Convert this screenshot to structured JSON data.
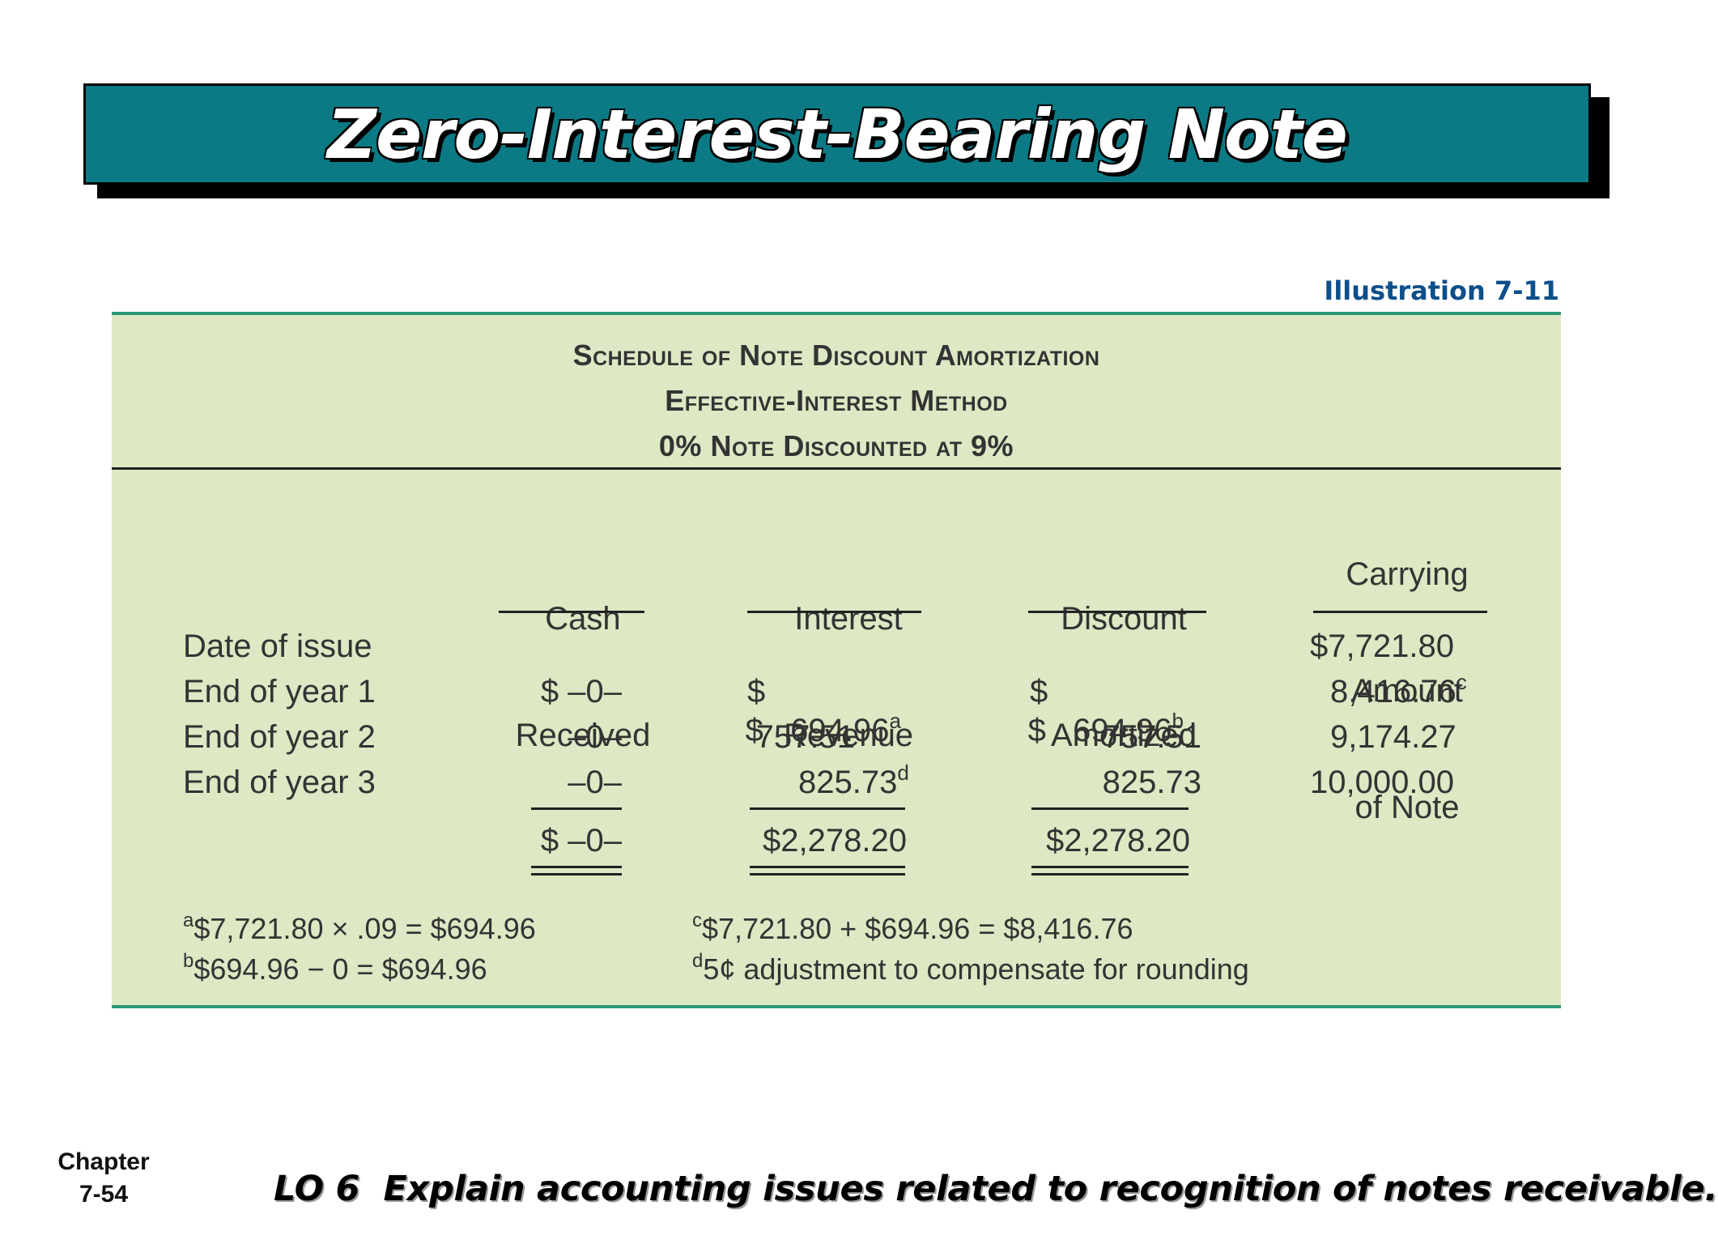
{
  "title": "Zero-Interest-Bearing Note",
  "illustration_label": "Illustration 7-11",
  "schedule": {
    "heading_lines": [
      "Schedule of Note Discount Amortization",
      "Effective-Interest Method",
      "0% Note Discounted at 9%"
    ],
    "columns": {
      "cash": [
        "Cash",
        "Received"
      ],
      "interest": [
        "Interest",
        "Revenue"
      ],
      "discount": [
        "Discount",
        "Amortized"
      ],
      "carrying": [
        "Carrying",
        "Amount",
        "of Note"
      ]
    },
    "rows": [
      {
        "label": "Date of issue",
        "cash": "",
        "interest": "",
        "interest_sup": "",
        "discount": "",
        "discount_sup": "",
        "carrying": "$7,721.80",
        "carrying_sup": ""
      },
      {
        "label": "End of year 1",
        "cash": "$ –0–",
        "interest": "$   694.96",
        "interest_sup": "a",
        "discount": "$   694.96",
        "discount_sup": "b",
        "carrying": "8,416.76",
        "carrying_sup": "c"
      },
      {
        "label": "End of year 2",
        "cash": "–0–",
        "interest": "757.51",
        "interest_sup": "",
        "discount": "757.51",
        "discount_sup": "",
        "carrying": "9,174.27",
        "carrying_sup": ""
      },
      {
        "label": "End of year 3",
        "cash": "–0–",
        "interest": "825.73",
        "interest_sup": "d",
        "discount": "825.73",
        "discount_sup": "",
        "carrying": "10,000.00",
        "carrying_sup": ""
      }
    ],
    "totals": {
      "cash": "$ –0–",
      "interest": "$2,278.20",
      "discount": "$2,278.20"
    },
    "footnotes": {
      "a": {
        "marker": "a",
        "text": "$7,721.80 × .09 = $694.96"
      },
      "b": {
        "marker": "b",
        "text": "$694.96 − 0 = $694.96"
      },
      "c": {
        "marker": "c",
        "text": "$7,721.80 + $694.96 = $8,416.76"
      },
      "d": {
        "marker": "d",
        "text": "5¢ adjustment to compensate for rounding"
      }
    }
  },
  "footer": {
    "chapter_label": "Chapter",
    "page_number": "7-54",
    "learning_objective": "LO 6  Explain accounting issues related to recognition of notes receivable."
  }
}
